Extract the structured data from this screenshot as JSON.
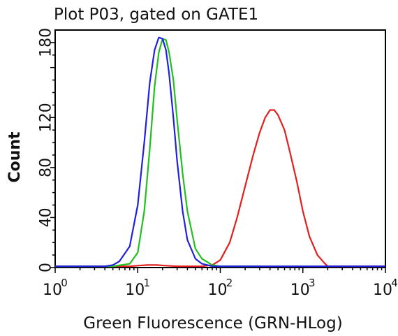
{
  "chart_data": {
    "type": "line",
    "title": "Plot P03, gated on GATE1",
    "xlabel": "Green Fluorescence (GRN-HLog)",
    "ylabel": "Count",
    "x_scale": "log",
    "xlim": [
      1,
      10000
    ],
    "ylim": [
      0,
      190
    ],
    "x_ticks": [
      {
        "value": 1,
        "base": "10",
        "exp": "0"
      },
      {
        "value": 10,
        "base": "10",
        "exp": "1"
      },
      {
        "value": 100,
        "base": "10",
        "exp": "2"
      },
      {
        "value": 1000,
        "base": "10",
        "exp": "3"
      },
      {
        "value": 10000,
        "base": "10",
        "exp": "4"
      }
    ],
    "y_ticks": [
      "0",
      "40",
      "80",
      "120",
      "180"
    ],
    "y_tick_values": [
      0,
      40,
      80,
      120,
      180
    ],
    "grid": false,
    "legend": "none",
    "series": [
      {
        "color": "#e02020",
        "x": [
          1,
          8,
          10,
          13,
          17,
          22,
          30,
          60,
          80,
          100,
          130,
          160,
          200,
          250,
          300,
          350,
          400,
          450,
          500,
          600,
          700,
          850,
          1000,
          1200,
          1500,
          1800,
          2000,
          10000
        ],
        "values": [
          1,
          1,
          1.5,
          2,
          2,
          1.5,
          1,
          1,
          2,
          6,
          20,
          40,
          65,
          90,
          108,
          120,
          126,
          126,
          122,
          110,
          92,
          68,
          45,
          25,
          10,
          4,
          1,
          1
        ]
      },
      {
        "color": "#20c020",
        "x": [
          1,
          5,
          8,
          10,
          12,
          14,
          16,
          18,
          20,
          22,
          24,
          27,
          30,
          35,
          40,
          50,
          60,
          80,
          100,
          300
        ],
        "values": [
          1,
          1,
          3,
          12,
          45,
          95,
          145,
          172,
          183,
          182,
          172,
          150,
          118,
          75,
          45,
          15,
          7,
          2,
          1,
          1
        ]
      },
      {
        "color": "#2020dd",
        "x": [
          1,
          4,
          5,
          6,
          8,
          10,
          12,
          14,
          16,
          18,
          20,
          22,
          24,
          27,
          30,
          35,
          40,
          50,
          60,
          80,
          100,
          10000
        ],
        "values": [
          1,
          1,
          2,
          5,
          17,
          50,
          100,
          148,
          174,
          184,
          183,
          174,
          155,
          120,
          85,
          45,
          22,
          7,
          3,
          1,
          1,
          1
        ]
      }
    ]
  }
}
